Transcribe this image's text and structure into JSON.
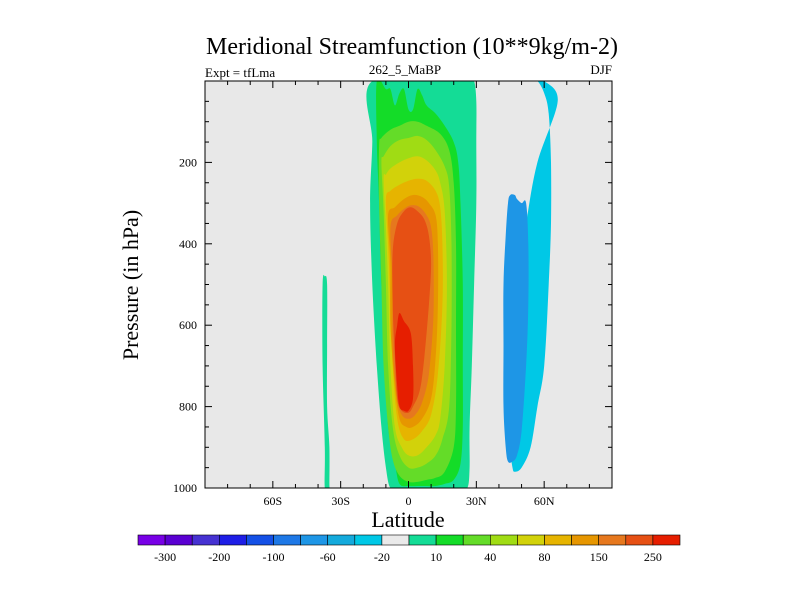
{
  "chart_data": {
    "type": "contour",
    "title": "Meridional Streamfunction (10**9kg/m-2)",
    "left_label": "Expt = tfLma",
    "center_label": "262_5_MaBP",
    "right_label": "DJF",
    "xlabel": "Latitude",
    "ylabel": "Pressure (in hPa)",
    "xlim": [
      -90,
      90
    ],
    "ylim": [
      1000,
      0
    ],
    "x_ticks": [
      {
        "value": -60,
        "label": "60S"
      },
      {
        "value": -30,
        "label": "30S"
      },
      {
        "value": 0,
        "label": "0"
      },
      {
        "value": 30,
        "label": "30N"
      },
      {
        "value": 60,
        "label": "60N"
      }
    ],
    "y_ticks": [
      {
        "value": 200,
        "label": "200"
      },
      {
        "value": 400,
        "label": "400"
      },
      {
        "value": 600,
        "label": "600"
      },
      {
        "value": 800,
        "label": "800"
      },
      {
        "value": 1000,
        "label": "1000"
      }
    ],
    "background_color": "#e8e8e8",
    "colorbar": {
      "colors": [
        "#7800e6",
        "#5a00d2",
        "#4632d2",
        "#1e1ee6",
        "#1450e6",
        "#1e78e6",
        "#1e96e6",
        "#14aadc",
        "#00c8e6",
        "#eaeaea",
        "#14dc96",
        "#14dc28",
        "#64dc28",
        "#a0dc14",
        "#d2d20a",
        "#e6b400",
        "#e69600",
        "#e6781e",
        "#e65014",
        "#e61e00"
      ],
      "labels": [
        {
          "boundary": 1,
          "text": "-300"
        },
        {
          "boundary": 3,
          "text": "-200"
        },
        {
          "boundary": 5,
          "text": "-100"
        },
        {
          "boundary": 7,
          "text": "-60"
        },
        {
          "boundary": 9,
          "text": "-20"
        },
        {
          "boundary": 11,
          "text": "10"
        },
        {
          "boundary": 13,
          "text": "40"
        },
        {
          "boundary": 15,
          "text": "80"
        },
        {
          "boundary": 17,
          "text": "150"
        },
        {
          "boundary": 19,
          "text": "250"
        }
      ]
    },
    "regions": [
      {
        "name": "hadley-level-1",
        "color": "#14dc96",
        "lat": [
          -16,
          -16,
          -17,
          -16,
          -14,
          -12,
          -10,
          -8,
          -4,
          0,
          4,
          10,
          14,
          18,
          22,
          26,
          27,
          27,
          28,
          29,
          30,
          30,
          30,
          29,
          27,
          25,
          20
        ],
        "p": [
          0,
          150,
          300,
          500,
          700,
          850,
          950,
          1000,
          1000,
          1000,
          1000,
          1000,
          1000,
          1000,
          1000,
          1000,
          950,
          850,
          700,
          500,
          300,
          150,
          50,
          0,
          0,
          0,
          0
        ]
      },
      {
        "name": "hadley-level-2",
        "color": "#14dc28",
        "lat": [
          -14,
          -14,
          -13,
          -12,
          -10,
          -9,
          -6,
          -4,
          0,
          4,
          8,
          12,
          16,
          20,
          23,
          24,
          24,
          24,
          23,
          22,
          20,
          16,
          12,
          8,
          6,
          4,
          2,
          0,
          -2,
          -4,
          -6,
          -8,
          -10
        ],
        "p": [
          0,
          150,
          300,
          500,
          700,
          850,
          940,
          990,
          995,
          995,
          995,
          995,
          990,
          980,
          940,
          850,
          700,
          500,
          300,
          200,
          150,
          110,
          80,
          60,
          35,
          20,
          70,
          70,
          20,
          30,
          60,
          20,
          20
        ]
      },
      {
        "name": "hadley-level-3",
        "color": "#64dc28",
        "lat": [
          -13,
          -13,
          -12,
          -11,
          -9,
          -7,
          -4,
          0,
          4,
          8,
          12,
          16,
          20,
          21,
          21,
          21,
          20,
          18,
          14,
          8,
          4,
          0,
          -4,
          -8,
          -12
        ],
        "p": [
          160,
          300,
          500,
          700,
          850,
          930,
          970,
          985,
          985,
          980,
          975,
          960,
          900,
          800,
          600,
          400,
          250,
          170,
          130,
          110,
          100,
          100,
          110,
          120,
          140
        ]
      },
      {
        "name": "hadley-level-4",
        "color": "#a0dc14",
        "lat": [
          -12,
          -11,
          -10,
          -9,
          -7,
          -4,
          0,
          4,
          8,
          12,
          15,
          18,
          19,
          19,
          18,
          16,
          12,
          8,
          4,
          0,
          -4,
          -8,
          -11
        ],
        "p": [
          200,
          320,
          500,
          700,
          850,
          920,
          950,
          950,
          940,
          920,
          880,
          800,
          600,
          400,
          260,
          210,
          170,
          145,
          135,
          140,
          145,
          160,
          185
        ]
      },
      {
        "name": "hadley-level-5",
        "color": "#d2d20a",
        "lat": [
          -11,
          -10,
          -9,
          -8,
          -6,
          -3,
          0,
          4,
          8,
          12,
          14,
          16,
          17,
          16,
          14,
          12,
          8,
          4,
          0,
          -4,
          -8,
          -10
        ],
        "p": [
          240,
          360,
          500,
          700,
          850,
          900,
          920,
          920,
          900,
          870,
          830,
          700,
          500,
          320,
          250,
          220,
          195,
          185,
          190,
          200,
          215,
          230
        ]
      },
      {
        "name": "hadley-level-6",
        "color": "#e6b400",
        "lat": [
          -10,
          -9,
          -8,
          -7,
          -5,
          -2,
          2,
          6,
          10,
          13,
          15,
          15,
          14,
          12,
          8,
          4,
          0,
          -4,
          -8
        ],
        "p": [
          290,
          400,
          550,
          700,
          830,
          880,
          880,
          860,
          820,
          720,
          550,
          400,
          310,
          270,
          245,
          240,
          245,
          255,
          270
        ]
      },
      {
        "name": "hadley-level-7",
        "color": "#e69600",
        "lat": [
          -9,
          -8,
          -8,
          -6,
          -4,
          -1,
          2,
          6,
          10,
          12,
          13,
          13,
          12,
          9,
          6,
          2,
          -2,
          -6
        ],
        "p": [
          330,
          450,
          600,
          750,
          830,
          850,
          850,
          830,
          780,
          680,
          550,
          400,
          330,
          300,
          285,
          280,
          290,
          310
        ]
      },
      {
        "name": "hadley-level-8",
        "color": "#e6781e",
        "lat": [
          -8,
          -7,
          -7,
          -5,
          -3,
          0,
          3,
          6,
          9,
          11,
          11,
          10,
          8,
          5,
          2,
          -1,
          -5
        ],
        "p": [
          360,
          500,
          650,
          780,
          820,
          830,
          820,
          790,
          720,
          580,
          430,
          360,
          330,
          310,
          305,
          310,
          330
        ]
      },
      {
        "name": "hadley-level-9",
        "color": "#e65014",
        "lat": [
          -7,
          -7,
          -6,
          -5,
          -3,
          0,
          2,
          5,
          7,
          9,
          10,
          9,
          7,
          4,
          1,
          -2,
          -5
        ],
        "p": [
          420,
          550,
          680,
          780,
          810,
          815,
          800,
          760,
          680,
          550,
          450,
          380,
          340,
          320,
          310,
          320,
          350
        ]
      },
      {
        "name": "hadley-level-10",
        "color": "#e61e00",
        "lat": [
          -5,
          -6,
          -5,
          -4,
          -2,
          0,
          2,
          2,
          1,
          -2,
          -4
        ],
        "p": [
          600,
          650,
          750,
          800,
          810,
          810,
          780,
          700,
          620,
          590,
          570
        ]
      },
      {
        "name": "ferrel-cell-negative",
        "color": "#00c8e6",
        "lat": [
          50,
          54,
          57,
          60,
          62,
          63,
          63,
          62,
          60,
          57,
          54,
          50,
          47,
          46,
          45,
          45,
          46,
          48,
          52,
          57,
          66,
          60,
          56
        ],
        "p": [
          0,
          0,
          0,
          30,
          80,
          200,
          350,
          500,
          700,
          800,
          900,
          950,
          960,
          950,
          900,
          800,
          700,
          500,
          350,
          200,
          50,
          0,
          0
        ]
      },
      {
        "name": "ferrel-cell-core",
        "color": "#1e96e6",
        "lat": [
          45,
          47,
          48,
          50,
          52,
          53,
          53,
          52,
          50,
          48,
          46,
          44,
          43,
          42,
          42,
          42,
          43,
          44
        ],
        "p": [
          280,
          280,
          290,
          300,
          300,
          400,
          550,
          700,
          860,
          920,
          935,
          935,
          900,
          800,
          650,
          500,
          380,
          300
        ]
      },
      {
        "name": "southern-cell",
        "color": "#14dc96",
        "lat": [
          -37,
          -36,
          -36,
          -36,
          -35,
          -35,
          -35,
          -37,
          -37,
          -38,
          -38
        ],
        "p": [
          480,
          500,
          650,
          800,
          900,
          990,
          1000,
          1000,
          900,
          700,
          500
        ]
      }
    ]
  }
}
